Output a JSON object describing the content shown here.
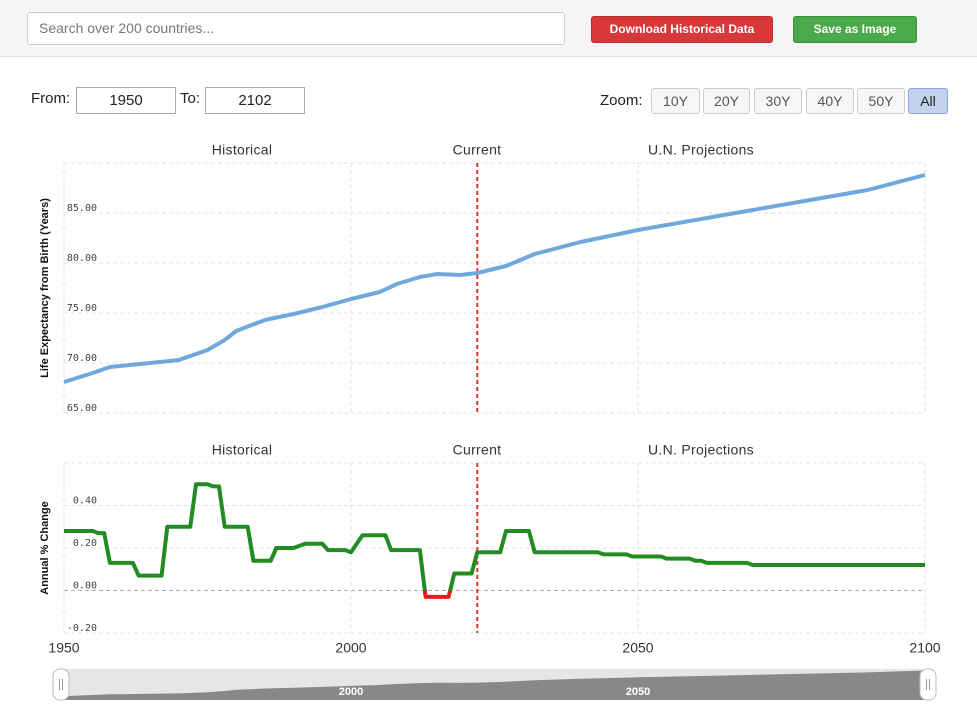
{
  "toolbar": {
    "search_placeholder": "Search over 200 countries...",
    "download": "Download Historical Data",
    "save": "Save as Image"
  },
  "range": {
    "from_label": "From:",
    "from": 1950,
    "to_label": "To:",
    "to": 2102
  },
  "zoom": {
    "label": "Zoom:",
    "options": [
      "10Y",
      "20Y",
      "30Y",
      "40Y",
      "50Y",
      "All"
    ],
    "active": 5
  },
  "chart_data": [
    {
      "type": "line",
      "y_label": "Life Expectancy from Birth (Years)",
      "sections": [
        "Historical",
        "Current",
        "U.N. Projections"
      ],
      "current_x": 2022,
      "xlim": [
        1950,
        2100
      ],
      "xticks": [
        1950,
        2000,
        2050,
        2100
      ],
      "ylim": [
        65,
        90
      ],
      "yticks": [
        {
          "value": 65,
          "label": "65.00"
        },
        {
          "value": 70,
          "label": "70.00"
        },
        {
          "value": 75,
          "label": "75.00"
        },
        {
          "value": 80,
          "label": "80.00"
        },
        {
          "value": 85,
          "label": "85.00"
        }
      ],
      "grid": true,
      "series": [
        {
          "color": "#6fa8dc",
          "x": [
            1950,
            1955,
            1958,
            1965,
            1970,
            1975,
            1978,
            1980,
            1985,
            1990,
            1995,
            2000,
            2005,
            2008,
            2012,
            2015,
            2019,
            2022,
            2027,
            2032,
            2040,
            2050,
            2060,
            2070,
            2080,
            2090,
            2100
          ],
          "values": [
            68.1,
            69.0,
            69.6,
            70.0,
            70.3,
            71.3,
            72.3,
            73.2,
            74.3,
            74.9,
            75.6,
            76.4,
            77.1,
            77.9,
            78.6,
            78.9,
            78.8,
            79.0,
            79.7,
            80.9,
            82.1,
            83.3,
            84.3,
            85.3,
            86.3,
            87.3,
            88.8
          ]
        }
      ]
    },
    {
      "type": "line",
      "y_label": "Annual % Change",
      "sections": [
        "Historical",
        "Current",
        "U.N. Projections"
      ],
      "current_x": 2022,
      "xlim": [
        1950,
        2100
      ],
      "xticks": [
        1950,
        2000,
        2050,
        2100
      ],
      "ylim": [
        -0.2,
        0.6
      ],
      "yticks": [
        {
          "value": -0.2,
          "label": "-0.20"
        },
        {
          "value": 0,
          "label": "0.00"
        },
        {
          "value": 0.2,
          "label": "0.20"
        },
        {
          "value": 0.4,
          "label": "0.40"
        }
      ],
      "grid": true,
      "series": [
        {
          "color": "#228b22",
          "negative_color": "#e02020",
          "x": [
            1950,
            1955,
            1956,
            1957,
            1958,
            1962,
            1963,
            1967,
            1968,
            1972,
            1973,
            1975,
            1976,
            1977,
            1978,
            1982,
            1983,
            1986,
            1987,
            1990,
            1992,
            1995,
            1996,
            1999,
            2000,
            2002,
            2006,
            2007,
            2012,
            2013,
            2017,
            2018,
            2021,
            2022,
            2026,
            2027,
            2031,
            2032,
            2043,
            2044,
            2048,
            2049,
            2054,
            2055,
            2059,
            2060,
            2061,
            2062,
            2069,
            2070,
            2100
          ],
          "values": [
            0.28,
            0.28,
            0.27,
            0.27,
            0.13,
            0.13,
            0.07,
            0.07,
            0.3,
            0.3,
            0.5,
            0.5,
            0.49,
            0.49,
            0.3,
            0.3,
            0.14,
            0.14,
            0.2,
            0.2,
            0.22,
            0.22,
            0.19,
            0.19,
            0.18,
            0.26,
            0.26,
            0.19,
            0.19,
            -0.03,
            -0.03,
            0.08,
            0.08,
            0.18,
            0.18,
            0.28,
            0.28,
            0.18,
            0.18,
            0.17,
            0.17,
            0.16,
            0.16,
            0.15,
            0.15,
            0.14,
            0.14,
            0.13,
            0.13,
            0.12,
            0.12
          ]
        }
      ]
    }
  ]
}
